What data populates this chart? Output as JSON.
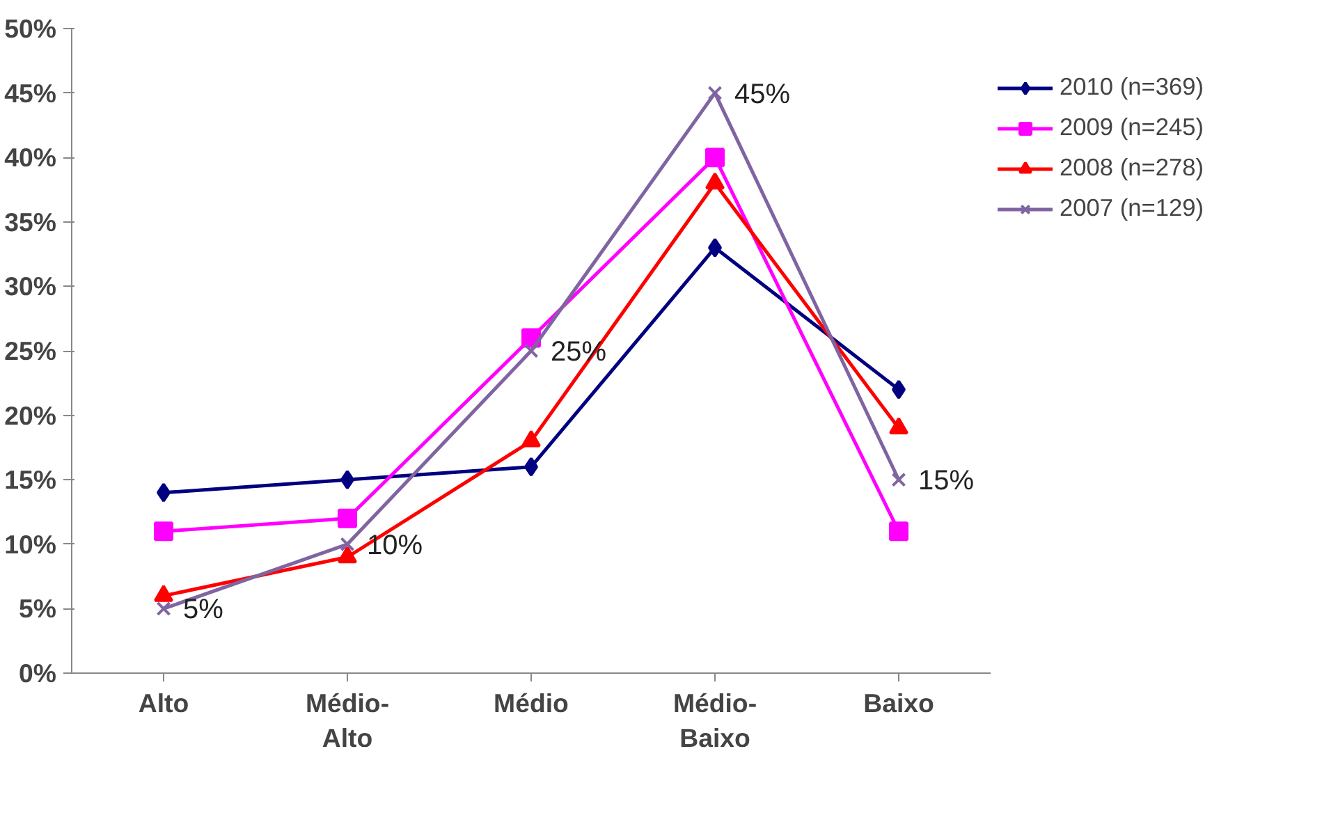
{
  "chart_data": {
    "type": "line",
    "categories": [
      "Alto",
      "Médio-\nAlto",
      "Médio",
      "Médio-\nBaixo",
      "Baixo"
    ],
    "series": [
      {
        "name": "2010 (n=369)",
        "color": "#000080",
        "marker": "diamond",
        "values": [
          14,
          15,
          16,
          33,
          22
        ]
      },
      {
        "name": "2009 (n=245)",
        "color": "#ff00ff",
        "marker": "square",
        "values": [
          11,
          12,
          26,
          40,
          11
        ]
      },
      {
        "name": "2008 (n=278)",
        "color": "#ff0000",
        "marker": "triangle",
        "values": [
          6,
          9,
          18,
          38,
          19
        ]
      },
      {
        "name": "2007 (n=129)",
        "color": "#8064a2",
        "marker": "cross",
        "values": [
          5,
          10,
          25,
          45,
          15
        ],
        "value_labels": [
          "5%",
          "10%",
          "25%",
          "45%",
          "15%"
        ]
      }
    ],
    "ylim": [
      0,
      50
    ],
    "yticks": [
      {
        "value": 0,
        "label": "0%"
      },
      {
        "value": 5,
        "label": "5%"
      },
      {
        "value": 10,
        "label": "10%"
      },
      {
        "value": 15,
        "label": "15%"
      },
      {
        "value": 20,
        "label": "20%"
      },
      {
        "value": 25,
        "label": "25%"
      },
      {
        "value": 30,
        "label": "30%"
      },
      {
        "value": 35,
        "label": "35%"
      },
      {
        "value": 40,
        "label": "40%"
      },
      {
        "value": 45,
        "label": "45%"
      },
      {
        "value": 50,
        "label": "50%"
      }
    ],
    "grid": false,
    "legend": "top right"
  }
}
